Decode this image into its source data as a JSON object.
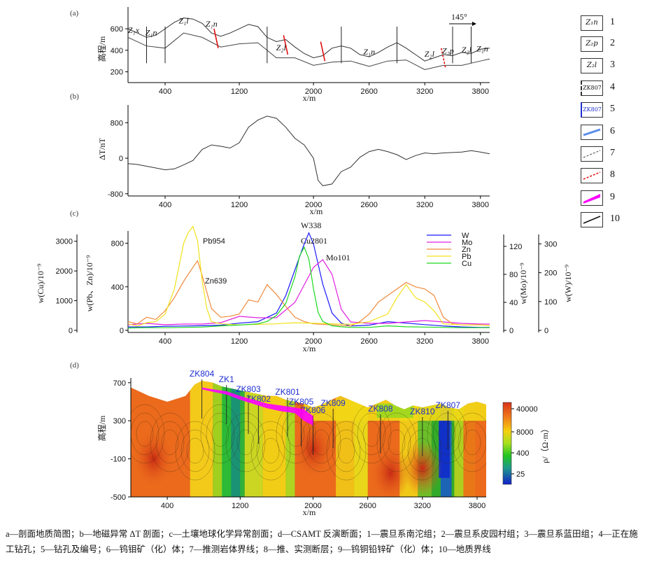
{
  "panels": {
    "a": {
      "tag": "(a)",
      "ylabel": "高程/m",
      "xlabel": "x/m",
      "direction": "145°",
      "yticks": [
        600,
        400,
        200
      ],
      "formations": [
        "Z₁x",
        "Z₁n",
        "Z₁l",
        "Z₁n",
        "Z₂l",
        "Z₁n",
        "Z₂l",
        "Z₂p",
        "Z₂l",
        "Z₁n"
      ]
    },
    "b": {
      "tag": "(b)",
      "ylabel": "ΔT/nT",
      "xlabel": "x/m",
      "yticks": [
        800,
        0,
        -800
      ]
    },
    "c": {
      "tag": "(c)",
      "xlabel": "x/m",
      "ylabel_left1": "w(Cu)/10⁻⁹",
      "ylabel_left2": "w(Pb、Zn)/10⁻⁹",
      "ylabel_right1": "w(Mo)/10⁻⁹",
      "ylabel_right2": "w(W)/10⁻⁹",
      "cu_ticks": [
        3000,
        2000,
        1000,
        0
      ],
      "pbzn_ticks": [
        800,
        400,
        0
      ],
      "mo_ticks": [
        120,
        80,
        40,
        0
      ],
      "w_ticks": [
        300,
        200,
        100,
        0
      ],
      "peak_labels": {
        "pb": "Pb954",
        "zn": "Zn639",
        "w": "W338",
        "cu": "Cu2801",
        "mo": "Mo101"
      }
    },
    "d": {
      "tag": "(d)",
      "ylabel": "高程/m",
      "xlabel": "x/m",
      "yticks": [
        700,
        300,
        -100,
        -500
      ],
      "colorbar_label": "ρ/（Ω·m）",
      "colorbar_ticks": [
        "40000",
        "8000",
        "400",
        "25"
      ],
      "boreholes": [
        "ZK804",
        "ZK1",
        "ZK803",
        "ZK802",
        "ZK801",
        "ZK805",
        "ZK806",
        "ZK809",
        "ZK808",
        "ZK810",
        "ZK807"
      ]
    }
  },
  "xticks": [
    400,
    1200,
    2000,
    2600,
    3200,
    3800
  ],
  "legend": [
    {
      "num": "1",
      "sym": "Z₁n"
    },
    {
      "num": "2",
      "sym": "Z₂p"
    },
    {
      "num": "3",
      "sym": "Z₂l"
    },
    {
      "num": "4",
      "sym": "ZK807"
    },
    {
      "num": "5",
      "sym": "ZK807"
    },
    {
      "num": "6",
      "sym": ""
    },
    {
      "num": "7",
      "sym": ""
    },
    {
      "num": "8",
      "sym": ""
    },
    {
      "num": "9",
      "sym": ""
    },
    {
      "num": "10",
      "sym": ""
    }
  ],
  "caption": "a—剖面地质简图；b—地磁异常 ΔT 剖面；c—土壤地球化学异常剖面；d—CSAMT 反演断面；1—震旦系南沱组；2—震旦系皮园村组；3—震旦系蓝田组；4—正在施工钻孔；5—钻孔及编号；6—钨钼矿（化）体；7—推测岩体界线；8—推、实测断层；9—钨铜铅锌矿（化）体；10—地质界线",
  "colors": {
    "W": "#1a1aff",
    "Mo": "#e020e0",
    "Zn": "#f08a3c",
    "Pb": "#f2e21a",
    "Cu": "#1fd81f",
    "fault": "#e01010",
    "orebody": "#ff00ff"
  },
  "chart_data": [
    {
      "type": "line",
      "title": "(a) 剖面地质简图",
      "xlabel": "x/m",
      "ylabel": "高程/m",
      "xlim": [
        0,
        3900
      ],
      "ylim": [
        100,
        750
      ],
      "series": [
        {
          "name": "topography",
          "x": [
            0,
            100,
            200,
            300,
            400,
            500,
            600,
            700,
            800,
            900,
            1000,
            1100,
            1200,
            1300,
            1400,
            1500,
            1600,
            1700,
            1800,
            1900,
            2000,
            2100,
            2200,
            2300,
            2400,
            2500,
            2600,
            2700,
            2800,
            2900,
            3000,
            3100,
            3200,
            3300,
            3400,
            3500,
            3600,
            3700,
            3800,
            3900
          ],
          "y": [
            600,
            560,
            520,
            540,
            600,
            660,
            700,
            690,
            650,
            560,
            530,
            560,
            600,
            640,
            620,
            520,
            480,
            500,
            430,
            370,
            330,
            350,
            420,
            440,
            420,
            360,
            340,
            380,
            430,
            470,
            420,
            360,
            300,
            330,
            360,
            350,
            380,
            370,
            410,
            420
          ]
        },
        {
          "name": "lower_boundary",
          "x": [
            0,
            200,
            400,
            600,
            800,
            1000,
            1200,
            1400,
            1600,
            1800,
            2000,
            2200,
            2400,
            2600,
            2800,
            3000,
            3200,
            3400,
            3600,
            3800,
            3900
          ],
          "y": [
            520,
            440,
            420,
            560,
            520,
            430,
            460,
            470,
            330,
            330,
            260,
            290,
            300,
            250,
            300,
            310,
            220,
            260,
            260,
            300,
            320
          ]
        }
      ]
    },
    {
      "type": "line",
      "title": "(b) 地磁异常 ΔT 剖面",
      "xlabel": "x/m",
      "ylabel": "ΔT/nT",
      "xlim": [
        0,
        3900
      ],
      "ylim": [
        -850,
        1200
      ],
      "series": [
        {
          "name": "ΔT",
          "x": [
            0,
            100,
            200,
            300,
            400,
            500,
            600,
            700,
            800,
            900,
            1000,
            1100,
            1200,
            1300,
            1400,
            1500,
            1600,
            1700,
            1800,
            1900,
            2000,
            2050,
            2100,
            2200,
            2300,
            2400,
            2500,
            2600,
            2700,
            2800,
            2900,
            3000,
            3100,
            3200,
            3300,
            3400,
            3500,
            3600,
            3700,
            3800,
            3900
          ],
          "y": [
            -120,
            -140,
            -180,
            -220,
            -260,
            -240,
            -150,
            -50,
            200,
            300,
            270,
            230,
            350,
            700,
            860,
            950,
            900,
            700,
            450,
            300,
            0,
            -500,
            -620,
            -580,
            -300,
            -200,
            20,
            150,
            200,
            150,
            80,
            -30,
            60,
            120,
            100,
            120,
            130,
            140,
            170,
            140,
            100
          ]
        }
      ]
    },
    {
      "type": "line",
      "title": "(c) 土壤地球化学异常剖面",
      "xlabel": "x/m",
      "xlim": [
        0,
        3900
      ],
      "series": [
        {
          "name": "W",
          "axis": "w(W)/10⁻⁹",
          "ylim": [
            0,
            340
          ],
          "x": [
            0,
            200,
            400,
            600,
            800,
            1000,
            1200,
            1400,
            1600,
            1700,
            1800,
            1900,
            1950,
            2000,
            2100,
            2200,
            2300,
            2400,
            2600,
            2800,
            3000,
            3200,
            3400,
            3600,
            3800,
            3900
          ],
          "y": [
            12,
            12,
            14,
            15,
            16,
            18,
            25,
            30,
            60,
            120,
            210,
            300,
            338,
            300,
            160,
            60,
            25,
            15,
            18,
            30,
            25,
            20,
            15,
            12,
            10,
            10
          ]
        },
        {
          "name": "Mo",
          "axis": "w(Mo)/10⁻⁹",
          "ylim": [
            0,
            140
          ],
          "x": [
            0,
            200,
            400,
            600,
            800,
            1000,
            1200,
            1400,
            1600,
            1800,
            1900,
            2000,
            2100,
            2200,
            2300,
            2400,
            2600,
            2800,
            3000,
            3200,
            3400,
            3600,
            3800,
            3900
          ],
          "y": [
            8,
            10,
            8,
            9,
            9,
            11,
            20,
            18,
            18,
            40,
            65,
            90,
            101,
            80,
            30,
            12,
            10,
            10,
            12,
            14,
            12,
            10,
            9,
            9
          ]
        },
        {
          "name": "Zn",
          "axis": "w(Pb、Zn)/10⁻⁹",
          "ylim": [
            0,
            900
          ],
          "x": [
            0,
            100,
            200,
            300,
            400,
            500,
            600,
            700,
            750,
            800,
            900,
            1000,
            1100,
            1200,
            1300,
            1400,
            1500,
            1600,
            1700,
            1800,
            1900,
            2000,
            2200,
            2400,
            2500,
            2600,
            2700,
            2800,
            2900,
            3000,
            3100,
            3200,
            3300,
            3400,
            3500,
            3600,
            3700,
            3800,
            3900
          ],
          "y": [
            80,
            60,
            120,
            100,
            180,
            300,
            450,
            580,
            639,
            500,
            200,
            120,
            130,
            150,
            280,
            260,
            420,
            330,
            220,
            120,
            80,
            60,
            50,
            40,
            80,
            150,
            260,
            320,
            380,
            440,
            400,
            380,
            320,
            120,
            60,
            50,
            50,
            50,
            45
          ]
        },
        {
          "name": "Pb",
          "axis": "w(Pb、Zn)/10⁻⁹",
          "ylim": [
            0,
            900
          ],
          "x": [
            0,
            100,
            200,
            300,
            400,
            500,
            600,
            650,
            700,
            750,
            800,
            850,
            900,
            1000,
            1200,
            1400,
            1600,
            1800,
            2000,
            2200,
            2400,
            2600,
            2800,
            2900,
            3000,
            3100,
            3200,
            3300,
            3400,
            3600,
            3800,
            3900
          ],
          "y": [
            60,
            40,
            70,
            80,
            150,
            380,
            800,
            900,
            954,
            820,
            450,
            200,
            80,
            60,
            50,
            55,
            60,
            70,
            65,
            60,
            55,
            80,
            150,
            300,
            420,
            300,
            260,
            180,
            60,
            50,
            50,
            45
          ]
        },
        {
          "name": "Cu",
          "axis": "w(Cu)/10⁻⁹",
          "ylim": [
            0,
            3300
          ],
          "x": [
            0,
            200,
            400,
            600,
            800,
            1000,
            1200,
            1400,
            1500,
            1600,
            1700,
            1800,
            1850,
            1900,
            1950,
            2000,
            2050,
            2100,
            2200,
            2300,
            2400,
            2600,
            2800,
            3000,
            3200,
            3400,
            3600,
            3800,
            3900
          ],
          "y": [
            80,
            90,
            90,
            100,
            110,
            150,
            180,
            220,
            300,
            500,
            900,
            1800,
            2500,
            2801,
            2400,
            1400,
            600,
            300,
            150,
            120,
            100,
            100,
            150,
            120,
            110,
            100,
            90,
            90,
            90
          ]
        }
      ]
    },
    {
      "type": "heatmap",
      "title": "(d) CSAMT 反演断面",
      "xlabel": "x/m",
      "ylabel": "高程/m",
      "xlim": [
        0,
        3900
      ],
      "ylim": [
        -500,
        750
      ],
      "colorbar": {
        "label": "ρ/（Ω·m）",
        "ticks": [
          40000,
          8000,
          400,
          25
        ]
      },
      "boreholes": [
        {
          "name": "ZK804",
          "x": 780
        },
        {
          "name": "ZK1",
          "x": 1050
        },
        {
          "name": "ZK803",
          "x": 1290
        },
        {
          "name": "ZK802",
          "x": 1400
        },
        {
          "name": "ZK801",
          "x": 1720
        },
        {
          "name": "ZK805",
          "x": 1870
        },
        {
          "name": "ZK806",
          "x": 2000
        },
        {
          "name": "ZK809",
          "x": 2220
        },
        {
          "name": "ZK808",
          "x": 2740
        },
        {
          "name": "ZK810",
          "x": 3200
        },
        {
          "name": "ZK807",
          "x": 3480
        }
      ]
    }
  ]
}
